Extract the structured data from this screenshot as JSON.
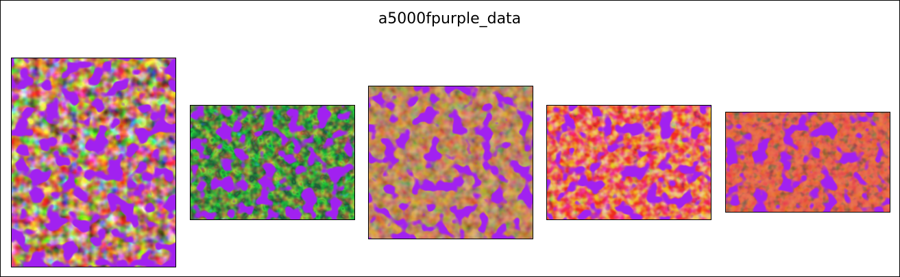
{
  "title": "a5000fpurple_data"
}
